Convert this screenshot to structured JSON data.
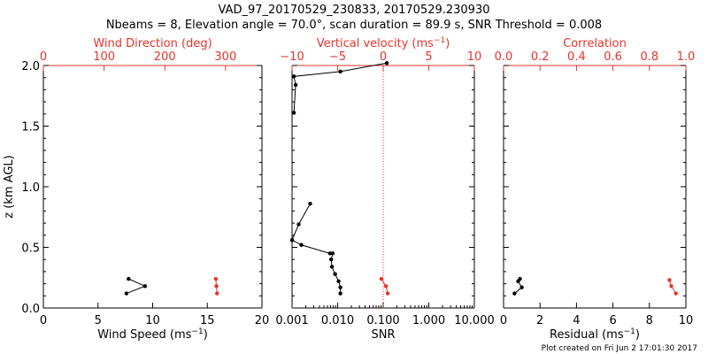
{
  "figure": {
    "title_line1": "VAD_97_20170529_230833, 20170529.230930",
    "title_line2": "Nbeams = 8, Elevation angle = 70.0°, scan duration = 89.9 s, SNR Threshold = 0.008",
    "footer": "Plot created on Fri Jun  2 17:01:30 2017"
  },
  "colors": {
    "black": "#000000",
    "red": "#e8332a"
  },
  "chart_data": [
    {
      "type": "line",
      "panel": "wind",
      "ylabel": "z (km AGL)",
      "ylim": [
        0,
        2
      ],
      "yticks": [
        "0.0",
        "0.5",
        "1.0",
        "1.5",
        "2.0"
      ],
      "xlabel": "Wind Speed (ms",
      "xlabel_sup": "−1",
      "xlabel_end": ")",
      "xlim": [
        0,
        20
      ],
      "xticks": [
        "0",
        "5",
        "10",
        "15",
        "20"
      ],
      "top_xlabel": "Wind Direction (deg)",
      "top_xlim": [
        0,
        360
      ],
      "top_xticks": [
        "0",
        "100",
        "200",
        "300"
      ],
      "series": [
        {
          "color": "#000000",
          "axis": "bottom",
          "x": [
            7.6,
            9.3,
            7.8
          ],
          "y": [
            0.12,
            0.18,
            0.24
          ]
        },
        {
          "color": "#e8332a",
          "axis": "top",
          "x": [
            286,
            285,
            284
          ],
          "y": [
            0.12,
            0.18,
            0.24
          ]
        }
      ]
    },
    {
      "type": "line",
      "panel": "snr",
      "ylim": [
        0,
        2
      ],
      "xlabel": "SNR",
      "xscale": "log",
      "xlim": [
        0.001,
        10
      ],
      "xticks": [
        "0.001",
        "0.010",
        "0.100",
        "1.000",
        "10.000"
      ],
      "top_xlabel": "Vertical velocity (ms",
      "top_xlabel_sup": "−1",
      "top_xlabel_end": ")",
      "top_xlim": [
        -10,
        10
      ],
      "top_xticks": [
        "−10",
        "−5",
        "0",
        "5",
        "10"
      ],
      "zero_line": 0,
      "series": [
        {
          "color": "#000000",
          "axis": "bottom",
          "x": [
            0.0115,
            0.0115,
            0.0105,
            0.0088,
            0.0075,
            0.0072,
            0.0078,
            0.0068,
            0.0016,
            0.001,
            0.0014,
            0.0025
          ],
          "y": [
            0.12,
            0.17,
            0.22,
            0.28,
            0.34,
            0.4,
            0.45,
            0.45,
            0.52,
            0.56,
            0.69,
            0.86
          ]
        },
        {
          "color": "#000000",
          "axis": "bottom",
          "y_gt_top": true,
          "x": [
            0.0011,
            0.0012,
            0.0011,
            0.0115,
            0.12
          ],
          "y": [
            1.61,
            1.84,
            1.91,
            1.95,
            2.02
          ]
        },
        {
          "color": "#e8332a",
          "axis": "top",
          "x": [
            0.5,
            0.3,
            -0.2
          ],
          "y": [
            0.12,
            0.18,
            0.24
          ]
        }
      ]
    },
    {
      "type": "line",
      "panel": "residual",
      "ylim": [
        0,
        2
      ],
      "xlabel": "Residual (ms",
      "xlabel_sup": "−1",
      "xlabel_end": ")",
      "xlim": [
        0,
        10
      ],
      "xticks": [
        "0",
        "2",
        "4",
        "6",
        "8",
        "10"
      ],
      "top_xlabel": "Correlation",
      "top_xlim": [
        0,
        1
      ],
      "top_xticks": [
        "0.0",
        "0.2",
        "0.4",
        "0.6",
        "0.8",
        "1.0"
      ],
      "series": [
        {
          "color": "#000000",
          "axis": "bottom",
          "x": [
            0.6,
            1.0,
            0.8,
            0.9
          ],
          "y": [
            0.12,
            0.17,
            0.22,
            0.24
          ]
        },
        {
          "color": "#e8332a",
          "axis": "top",
          "x": [
            0.945,
            0.92,
            0.91
          ],
          "y": [
            0.12,
            0.18,
            0.23
          ]
        }
      ]
    }
  ]
}
